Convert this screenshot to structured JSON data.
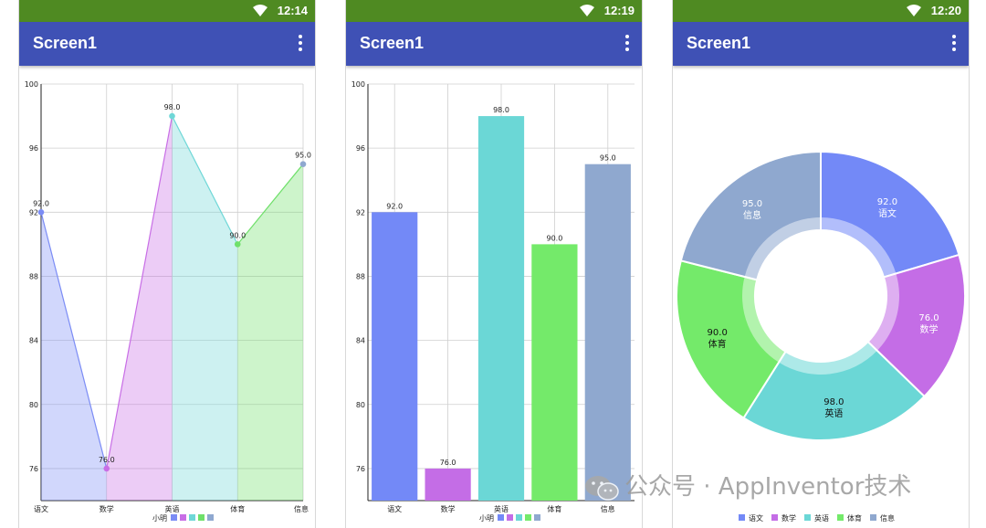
{
  "screens": [
    {
      "time": "12:14",
      "title": "Screen1"
    },
    {
      "time": "12:19",
      "title": "Screen1"
    },
    {
      "time": "12:20",
      "title": "Screen1"
    }
  ],
  "watermark": "公众号 · AppInventor技术",
  "chart_data": [
    {
      "type": "area",
      "categories": [
        "语文",
        "数学",
        "英语",
        "体育",
        "信息"
      ],
      "series": [
        {
          "name": "小明",
          "values": [
            92.0,
            76.0,
            98.0,
            90.0,
            95.0
          ]
        }
      ],
      "ylim": [
        74,
        100
      ],
      "yticks": [
        76,
        80,
        84,
        88,
        92,
        96,
        100
      ],
      "colors": [
        "#7b8cf5",
        "#c86ee6",
        "#6fd7d7",
        "#6fe06a",
        "#8fa8d0"
      ],
      "grid": true,
      "legend": "bottom"
    },
    {
      "type": "bar",
      "categories": [
        "语文",
        "数学",
        "英语",
        "体育",
        "信息"
      ],
      "series": [
        {
          "name": "小明",
          "values": [
            92.0,
            76.0,
            98.0,
            90.0,
            95.0
          ]
        }
      ],
      "ylim": [
        74,
        100
      ],
      "yticks": [
        76,
        80,
        84,
        88,
        92,
        96,
        100
      ],
      "colors": [
        "#7389f7",
        "#c46de6",
        "#6bd7d6",
        "#74ea6a",
        "#8fa8cf"
      ],
      "grid": true,
      "legend": "bottom"
    },
    {
      "type": "pie",
      "categories": [
        "语文",
        "数学",
        "英语",
        "体育",
        "信息"
      ],
      "values": [
        92.0,
        76.0,
        98.0,
        90.0,
        95.0
      ],
      "colors": [
        "#7389f7",
        "#c46de6",
        "#6bd7d6",
        "#74ea6a",
        "#8fa8cf"
      ],
      "legend": "bottom"
    }
  ]
}
